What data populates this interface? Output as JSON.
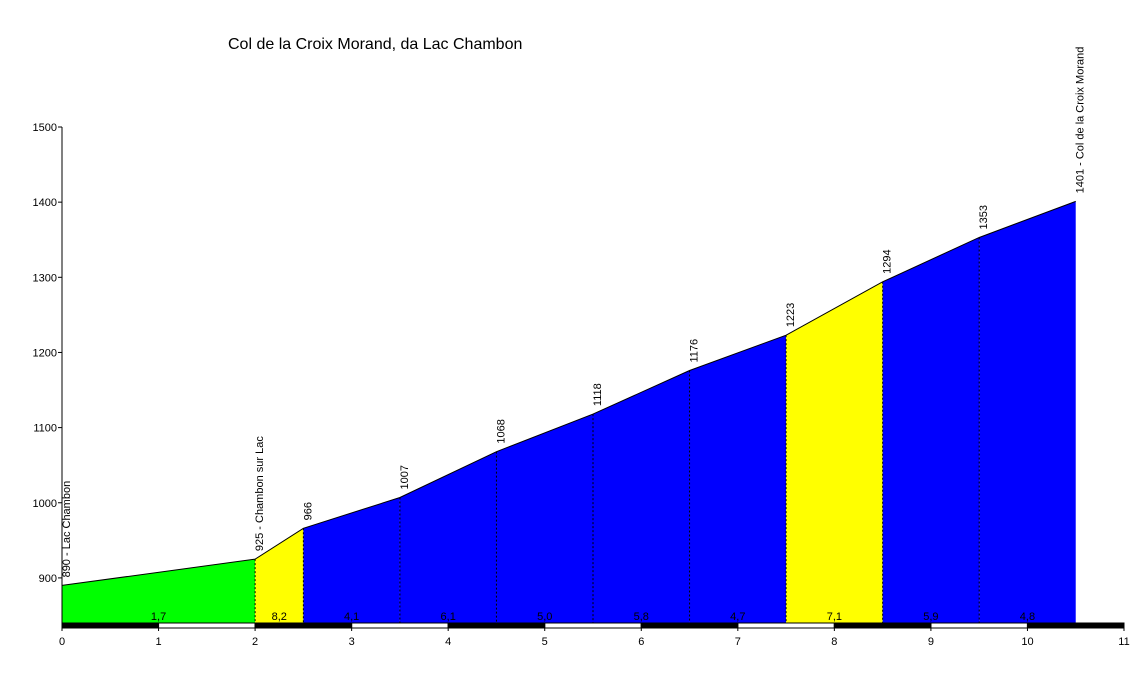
{
  "chart_data": {
    "type": "area",
    "title": "Col de la Croix Morand, da Lac Chambon",
    "xlabel": "",
    "ylabel": "",
    "xlim": [
      0,
      11
    ],
    "ylim": [
      840,
      1500
    ],
    "xticks": [
      "0",
      "1",
      "2",
      "3",
      "4",
      "5",
      "6",
      "7",
      "8",
      "9",
      "10",
      "11"
    ],
    "yticks": [
      "900",
      "1000",
      "1100",
      "1200",
      "1300",
      "1400",
      "1500"
    ],
    "points": [
      {
        "x": 0,
        "y": 890,
        "label": "890 - Lac Chambon"
      },
      {
        "x": 2,
        "y": 925,
        "label": "925 - Chambon sur Lac"
      },
      {
        "x": 2.5,
        "y": 966,
        "label": "966"
      },
      {
        "x": 3.5,
        "y": 1007,
        "label": "1007"
      },
      {
        "x": 4.5,
        "y": 1068,
        "label": "1068"
      },
      {
        "x": 5.5,
        "y": 1118,
        "label": "1118"
      },
      {
        "x": 6.5,
        "y": 1176,
        "label": "1176"
      },
      {
        "x": 7.5,
        "y": 1223,
        "label": "1223"
      },
      {
        "x": 8.5,
        "y": 1294,
        "label": "1294"
      },
      {
        "x": 9.5,
        "y": 1353,
        "label": "1353"
      },
      {
        "x": 10.5,
        "y": 1401,
        "label": "1401 - Col de la Croix Morand"
      }
    ],
    "segments": [
      {
        "from": 0,
        "to": 2,
        "gradient": "1,7",
        "color": "#00ff00"
      },
      {
        "from": 2,
        "to": 2.5,
        "gradient": "8,2",
        "color": "#ffff00"
      },
      {
        "from": 2.5,
        "to": 3.5,
        "gradient": "4,1",
        "color": "#0000ff"
      },
      {
        "from": 3.5,
        "to": 4.5,
        "gradient": "6,1",
        "color": "#0000ff"
      },
      {
        "from": 4.5,
        "to": 5.5,
        "gradient": "5,0",
        "color": "#0000ff"
      },
      {
        "from": 5.5,
        "to": 6.5,
        "gradient": "5,8",
        "color": "#0000ff"
      },
      {
        "from": 6.5,
        "to": 7.5,
        "gradient": "4,7",
        "color": "#0000ff"
      },
      {
        "from": 7.5,
        "to": 8.5,
        "gradient": "7,1",
        "color": "#ffff00"
      },
      {
        "from": 8.5,
        "to": 9.5,
        "gradient": "5,9",
        "color": "#0000ff"
      },
      {
        "from": 9.5,
        "to": 10.5,
        "gradient": "4,8",
        "color": "#0000ff"
      }
    ],
    "grid": false,
    "legend": "none"
  }
}
